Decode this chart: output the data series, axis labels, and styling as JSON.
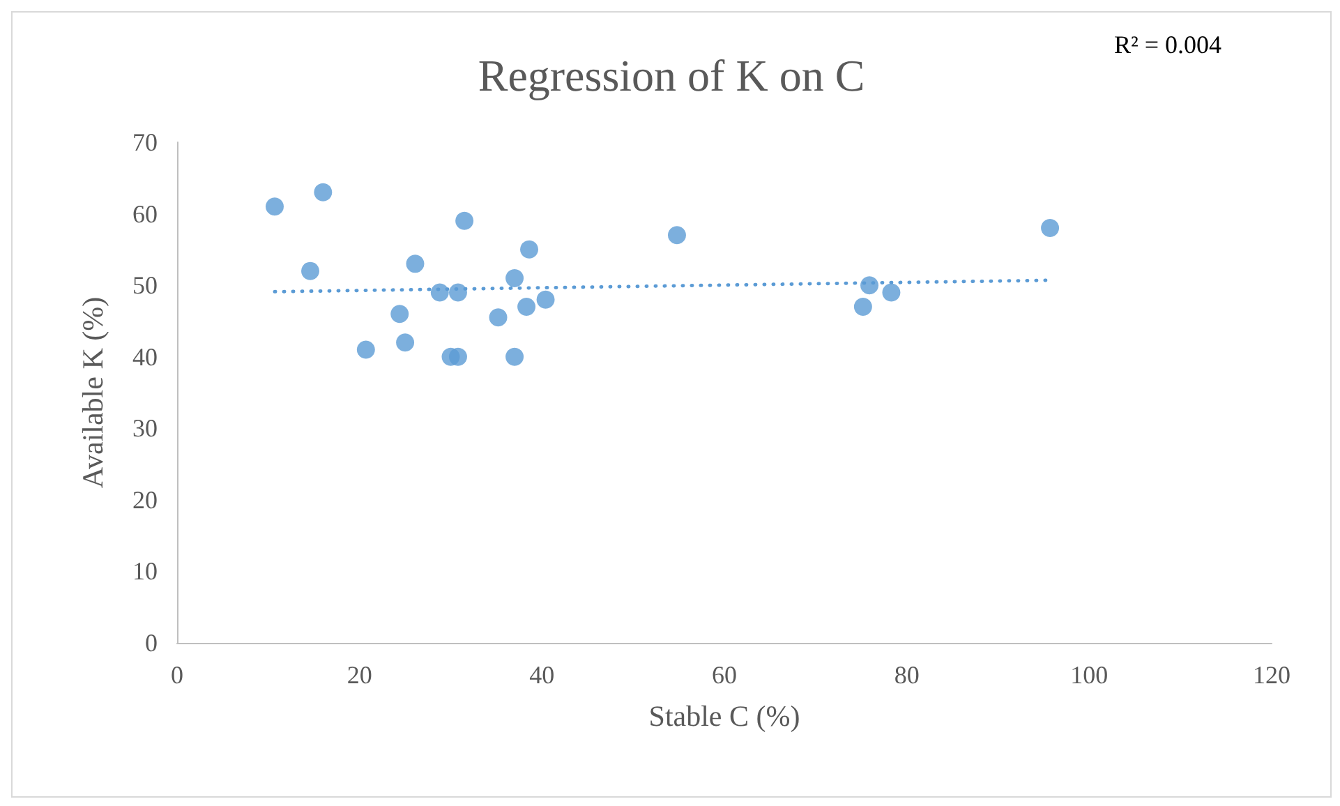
{
  "chart_data": {
    "type": "scatter",
    "title": "Regression of K on C",
    "xlabel": "Stable C (%)",
    "ylabel": "Available K (%)",
    "xlim": [
      0,
      120
    ],
    "xticks": [
      0,
      20,
      40,
      60,
      80,
      100,
      120
    ],
    "ylim": [
      0,
      70
    ],
    "yticks": [
      0,
      10,
      20,
      30,
      40,
      50,
      60,
      70
    ],
    "grid": false,
    "marker": "circle",
    "annotations": [
      "R² = 0.004"
    ],
    "series": [
      {
        "color": "#5b9bd5",
        "x": [
          10.7,
          16,
          14.6,
          26.1,
          24.4,
          20.7,
          25,
          31.5,
          38.6,
          37,
          28.8,
          30.8,
          40.4,
          38.3,
          35.2,
          30,
          30.8,
          37,
          54.8,
          95.7,
          75.9,
          78.3,
          75.2
        ],
        "values": [
          61,
          63,
          52,
          53,
          46,
          41,
          42,
          59,
          55,
          51,
          49,
          49,
          48,
          47,
          45.5,
          40,
          40,
          40,
          57,
          58,
          50,
          49,
          47
        ]
      },
      {
        "type": "line",
        "line_style": "dotted",
        "marker": "none",
        "color": "#5b9bd5",
        "x": [
          10.7,
          95.7
        ],
        "values": [
          49.1,
          50.7
        ]
      }
    ]
  }
}
